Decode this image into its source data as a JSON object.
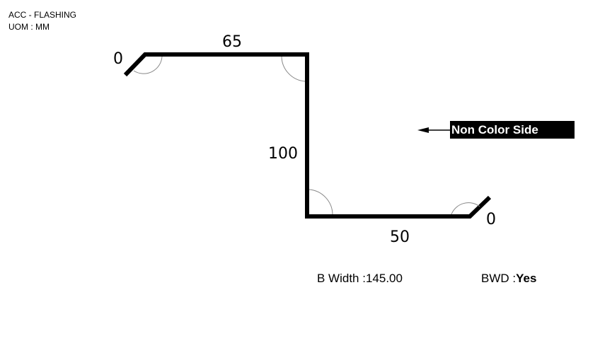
{
  "header": {
    "profile": "ACC - FLASHING",
    "uom": "UOM : MM"
  },
  "dimensions": {
    "left_hem": "0",
    "top": "65",
    "vertical": "100",
    "bottom": "50",
    "right_hem": "0"
  },
  "annotation": {
    "side_label": "Non Color Side"
  },
  "footer": {
    "bwidth_label": "B Width :",
    "bwidth_value": "145.00",
    "bwd_label": "BWD :",
    "bwd_value": "Yes"
  }
}
